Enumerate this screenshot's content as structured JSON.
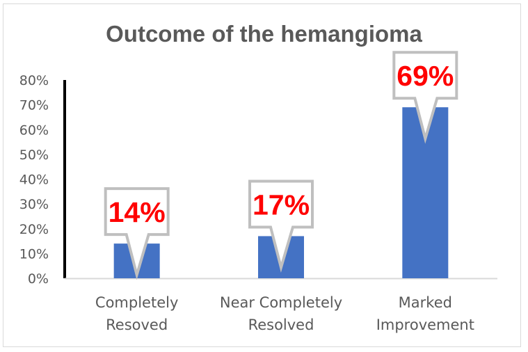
{
  "chart_data": {
    "type": "bar",
    "title": "Outcome of the hemangioma",
    "xlabel": "",
    "ylabel": "",
    "categories": [
      [
        "Completely",
        "Resoved"
      ],
      [
        "Near Completely",
        "Resolved"
      ],
      [
        "Marked",
        "Improvement"
      ]
    ],
    "values": [
      14,
      17,
      69
    ],
    "data_labels": [
      "14%",
      "17%",
      "69%"
    ],
    "ylim": [
      0,
      80
    ],
    "yticks": [
      "0%",
      "10%",
      "20%",
      "30%",
      "40%",
      "50%",
      "60%",
      "70%",
      "80%"
    ],
    "grid": false,
    "legend": "none",
    "colors": {
      "bar": "#4472c4",
      "label_text": "#ff0000",
      "callout_border": "#bfbfbf",
      "axis": "#000000"
    }
  }
}
